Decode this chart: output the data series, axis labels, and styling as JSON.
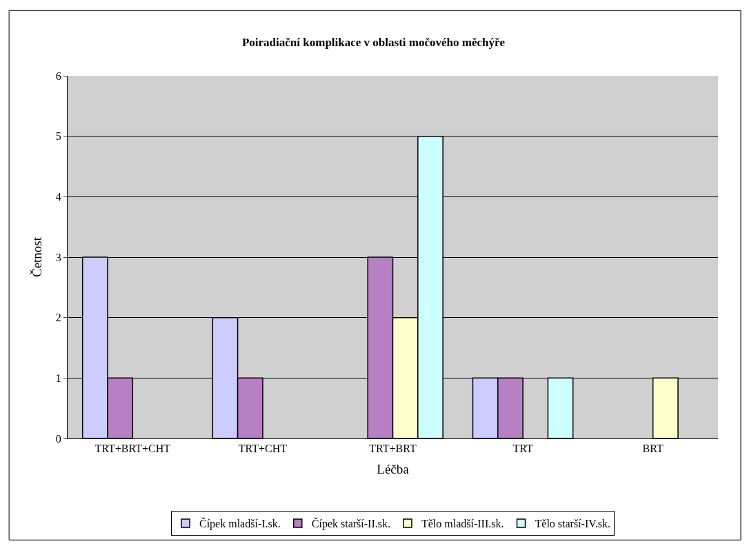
{
  "chart_data": {
    "type": "bar",
    "title": "Poiradiační komplikace v oblasti močového měchýře",
    "xlabel": "Léčba",
    "ylabel": "Četnost",
    "categories": [
      "TRT+BRT+CHT",
      "TRT+CHT",
      "TRT+BRT",
      "TRT",
      "BRT"
    ],
    "series": [
      {
        "name": "Čípek mladší-I.sk.",
        "color": "#ccccff",
        "values": [
          3,
          2,
          null,
          1,
          null
        ]
      },
      {
        "name": "Čípek starší-II.sk.",
        "color": "#b77fc4",
        "values": [
          1,
          1,
          3,
          1,
          null
        ]
      },
      {
        "name": "Tělo mladší-III.sk.",
        "color": "#ffffcc",
        "values": [
          null,
          null,
          2,
          null,
          1
        ]
      },
      {
        "name": "Tělo starší-IV.sk.",
        "color": "#ccffff",
        "values": [
          null,
          null,
          5,
          1,
          null
        ]
      }
    ],
    "ylim": [
      0,
      6
    ],
    "yticks": [
      0,
      1,
      2,
      3,
      4,
      5,
      6
    ],
    "grid": "y",
    "legend": "bottom"
  }
}
